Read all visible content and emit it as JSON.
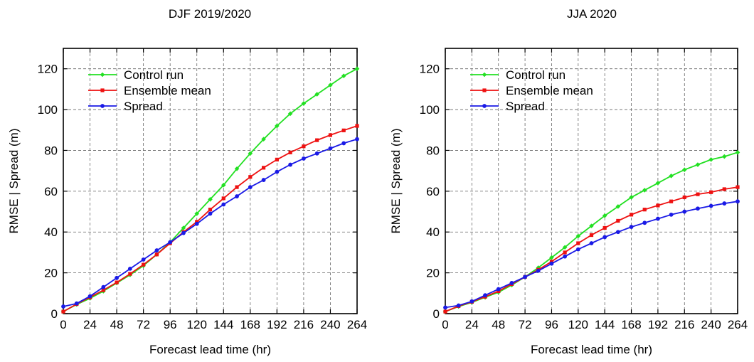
{
  "chart_data": [
    {
      "type": "line",
      "title": "DJF 2019/2020",
      "xlabel": "Forecast lead time (hr)",
      "ylabel": "RMSE | Spread (m)",
      "xlim": [
        0,
        264
      ],
      "ylim": [
        0,
        130
      ],
      "xticks": [
        0,
        24,
        48,
        72,
        96,
        120,
        144,
        168,
        192,
        216,
        240,
        264
      ],
      "yticks": [
        0,
        20,
        40,
        60,
        80,
        100,
        120
      ],
      "grid": true,
      "legend": "top-left",
      "x": [
        0,
        12,
        24,
        36,
        48,
        60,
        72,
        84,
        96,
        108,
        120,
        132,
        144,
        156,
        168,
        180,
        192,
        204,
        216,
        228,
        240,
        252,
        264
      ],
      "series": [
        {
          "name": "Control run",
          "color": "#22e022",
          "marker": "diamond",
          "values": [
            1,
            4.5,
            7.5,
            11,
            15,
            19,
            23.5,
            29,
            35,
            42,
            49,
            56,
            63,
            71,
            78.5,
            85.5,
            92,
            98,
            103,
            107.5,
            112,
            116.5,
            120
          ]
        },
        {
          "name": "Ensemble mean",
          "color": "#ee1111",
          "marker": "square",
          "values": [
            1,
            4.7,
            8,
            11.5,
            15.3,
            19.5,
            24,
            29,
            34.5,
            40,
            45,
            51,
            56.5,
            62,
            67,
            71.5,
            75.5,
            79,
            82,
            85,
            87.5,
            89.8,
            92
          ]
        },
        {
          "name": "Spread",
          "color": "#1a1ae6",
          "marker": "circle",
          "values": [
            3.5,
            5,
            8.5,
            13,
            17.5,
            22,
            26.5,
            31,
            35,
            39.5,
            44,
            49,
            53.5,
            57.5,
            62,
            65.5,
            69.5,
            73,
            76,
            78.5,
            81,
            83.5,
            85.5
          ]
        }
      ]
    },
    {
      "type": "line",
      "title": "JJA 2020",
      "xlabel": "Forecast lead time (hr)",
      "ylabel": "RMSE | Spread (m)",
      "xlim": [
        0,
        264
      ],
      "ylim": [
        0,
        130
      ],
      "xticks": [
        0,
        24,
        48,
        72,
        96,
        120,
        144,
        168,
        192,
        216,
        240,
        264
      ],
      "yticks": [
        0,
        20,
        40,
        60,
        80,
        100,
        120
      ],
      "grid": true,
      "legend": "top-left",
      "x": [
        0,
        12,
        24,
        36,
        48,
        60,
        72,
        84,
        96,
        108,
        120,
        132,
        144,
        156,
        168,
        180,
        192,
        204,
        216,
        228,
        240,
        252,
        264
      ],
      "series": [
        {
          "name": "Control run",
          "color": "#22e022",
          "marker": "diamond",
          "values": [
            1,
            3.5,
            5.5,
            8,
            10.5,
            14,
            18,
            22.5,
            27.5,
            32.5,
            38,
            43,
            48,
            52.5,
            57,
            60.5,
            64,
            67.5,
            70.5,
            73,
            75.5,
            77,
            79
          ]
        },
        {
          "name": "Ensemble mean",
          "color": "#ee1111",
          "marker": "square",
          "values": [
            1,
            3.7,
            5.8,
            8.3,
            11,
            14.5,
            18,
            21.5,
            25.5,
            30,
            34.5,
            38.5,
            42,
            45.5,
            48.5,
            51,
            53,
            55,
            57,
            58.5,
            59.5,
            61,
            62
          ]
        },
        {
          "name": "Spread",
          "color": "#1a1ae6",
          "marker": "circle",
          "values": [
            3,
            4,
            6,
            9,
            12,
            15,
            18,
            21,
            24.5,
            28,
            31.5,
            34.5,
            37.5,
            40,
            42.5,
            44.5,
            46.5,
            48.5,
            50,
            51.5,
            52.8,
            54,
            55
          ]
        }
      ]
    }
  ]
}
